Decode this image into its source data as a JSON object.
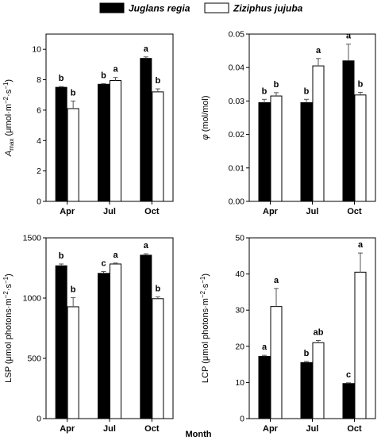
{
  "legend": [
    {
      "name": "Juglans regia",
      "color": "#000000"
    },
    {
      "name": "Ziziphus jujuba",
      "color": "#ffffff"
    }
  ],
  "xlabel": "Month",
  "chart_data": [
    {
      "type": "bar",
      "panel": "top-left",
      "ylabel": [
        "A",
        "max",
        " (μmol·m",
        "−2",
        "·s",
        "−1",
        ")"
      ],
      "categories": [
        "Apr",
        "Jul",
        "Oct"
      ],
      "ylim": [
        0,
        11
      ],
      "yticks": [
        0,
        2,
        4,
        6,
        8,
        10
      ],
      "tick_decimals": 0,
      "series": [
        {
          "name": "Juglans regia",
          "values": [
            7.5,
            7.7,
            9.4
          ],
          "errors": [
            0.05,
            0.05,
            0.1
          ],
          "letters": [
            "b",
            "b",
            "a"
          ]
        },
        {
          "name": "Ziziphus jujuba",
          "values": [
            6.1,
            7.95,
            7.2
          ],
          "errors": [
            0.5,
            0.2,
            0.2
          ],
          "letters": [
            "b",
            "a",
            "b"
          ]
        }
      ]
    },
    {
      "type": "bar",
      "panel": "top-right",
      "ylabel": [
        "φ",
        "",
        " (mol/mol)",
        "",
        "",
        "",
        ""
      ],
      "categories": [
        "Apr",
        "Jul",
        "Oct"
      ],
      "ylim": [
        0,
        0.05
      ],
      "yticks": [
        0,
        0.01,
        0.02,
        0.03,
        0.04,
        0.05
      ],
      "tick_decimals": 2,
      "series": [
        {
          "name": "Juglans regia",
          "values": [
            0.0295,
            0.0295,
            0.042
          ],
          "errors": [
            0.001,
            0.001,
            0.005
          ],
          "letters": [
            "b",
            "b",
            "a"
          ]
        },
        {
          "name": "Ziziphus jujuba",
          "values": [
            0.0315,
            0.0405,
            0.0318
          ],
          "errors": [
            0.001,
            0.0022,
            0.0008
          ],
          "letters": [
            "b",
            "a",
            "b"
          ]
        }
      ]
    },
    {
      "type": "bar",
      "panel": "bottom-left",
      "ylabel": [
        "LSP (μmol photons·m",
        "−2",
        "·s",
        "−1",
        ")",
        "",
        ""
      ],
      "categories": [
        "Apr",
        "Jul",
        "Oct"
      ],
      "ylim": [
        0,
        1500
      ],
      "yticks": [
        0,
        500,
        1000,
        1500
      ],
      "tick_decimals": 0,
      "series": [
        {
          "name": "Juglans regia",
          "values": [
            1268,
            1205,
            1356
          ],
          "errors": [
            15,
            15,
            12
          ],
          "letters": [
            "b",
            "c",
            "a"
          ]
        },
        {
          "name": "Ziziphus jujuba",
          "values": [
            928,
            1283,
            995
          ],
          "errors": [
            75,
            8,
            15
          ],
          "letters": [
            "b",
            "a",
            "b"
          ]
        }
      ]
    },
    {
      "type": "bar",
      "panel": "bottom-right",
      "ylabel": [
        "LCP (μmol photons·m",
        "−2",
        "·s",
        "−1",
        ")",
        "",
        ""
      ],
      "categories": [
        "Apr",
        "Jul",
        "Oct"
      ],
      "ylim": [
        0,
        50
      ],
      "yticks": [
        0,
        10,
        20,
        30,
        40,
        50
      ],
      "tick_decimals": 0,
      "series": [
        {
          "name": "Juglans regia",
          "values": [
            17.2,
            15.5,
            9.7
          ],
          "errors": [
            0.3,
            0.3,
            0.2
          ],
          "letters": [
            "a",
            "b",
            "c"
          ]
        },
        {
          "name": "Ziziphus jujuba",
          "values": [
            31.0,
            21.0,
            40.5
          ],
          "errors": [
            5.0,
            0.6,
            5.3
          ],
          "letters": [
            "a",
            "ab",
            "a"
          ]
        }
      ]
    }
  ]
}
